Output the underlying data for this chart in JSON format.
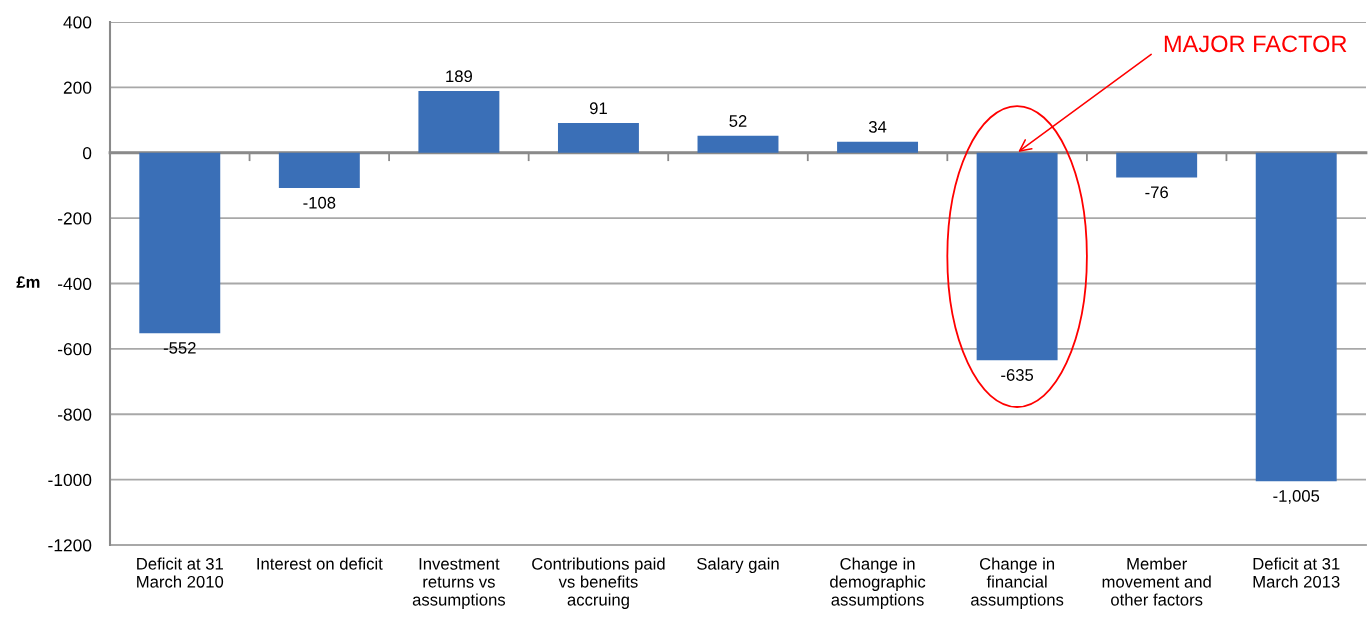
{
  "chart_data": {
    "type": "bar",
    "ylabel": "£m",
    "categories": [
      "Deficit at 31\nMarch 2010",
      "Interest on deficit",
      "Investment\nreturns vs\nassumptions",
      "Contributions paid\nvs benefits\naccruing",
      "Salary gain",
      "Change in\ndemographic\nassumptions",
      "Change in\nfinancial\nassumptions",
      "Member\nmovement and\nother factors",
      "Deficit at 31\nMarch 2013"
    ],
    "values": [
      -552,
      -108,
      189,
      91,
      52,
      34,
      -635,
      -76,
      -1005
    ],
    "value_labels": [
      "-552",
      "-108",
      "189",
      "91",
      "52",
      "34",
      "-635",
      "-76",
      "-1,005"
    ],
    "color": "#3a6fb7",
    "ylim": [
      -1200,
      400
    ],
    "yticks": [
      -1200,
      -1000,
      -800,
      -600,
      -400,
      -200,
      0,
      200,
      400
    ],
    "grid": "y",
    "annotations": [
      {
        "text": "MAJOR FACTOR",
        "x": "Change in\nfinancial\nassumptions",
        "y": 0
      }
    ]
  }
}
